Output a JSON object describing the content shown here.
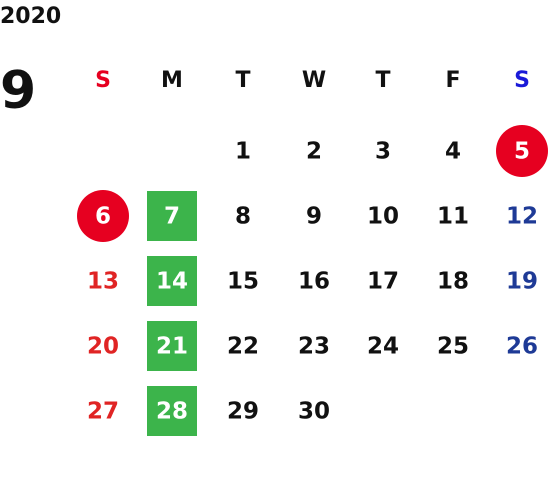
{
  "year": "2020",
  "month": "9",
  "weekdays": [
    "S",
    "M",
    "T",
    "W",
    "T",
    "F",
    "S"
  ],
  "weeks": [
    [
      null,
      null,
      {
        "label": "1"
      },
      {
        "label": "2"
      },
      {
        "label": "3"
      },
      {
        "label": "4"
      },
      {
        "label": "5",
        "style": "holiday"
      }
    ],
    [
      {
        "label": "6",
        "style": "holiday"
      },
      {
        "label": "7",
        "style": "closed"
      },
      {
        "label": "8"
      },
      {
        "label": "9"
      },
      {
        "label": "10"
      },
      {
        "label": "11"
      },
      {
        "label": "12"
      }
    ],
    [
      {
        "label": "13"
      },
      {
        "label": "14",
        "style": "closed"
      },
      {
        "label": "15"
      },
      {
        "label": "16"
      },
      {
        "label": "17"
      },
      {
        "label": "18"
      },
      {
        "label": "19"
      }
    ],
    [
      {
        "label": "20"
      },
      {
        "label": "21",
        "style": "closed"
      },
      {
        "label": "22"
      },
      {
        "label": "23"
      },
      {
        "label": "24"
      },
      {
        "label": "25"
      },
      {
        "label": "26"
      }
    ],
    [
      {
        "label": "27"
      },
      {
        "label": "28",
        "style": "closed"
      },
      {
        "label": "29"
      },
      {
        "label": "30"
      },
      null,
      null,
      null
    ]
  ]
}
